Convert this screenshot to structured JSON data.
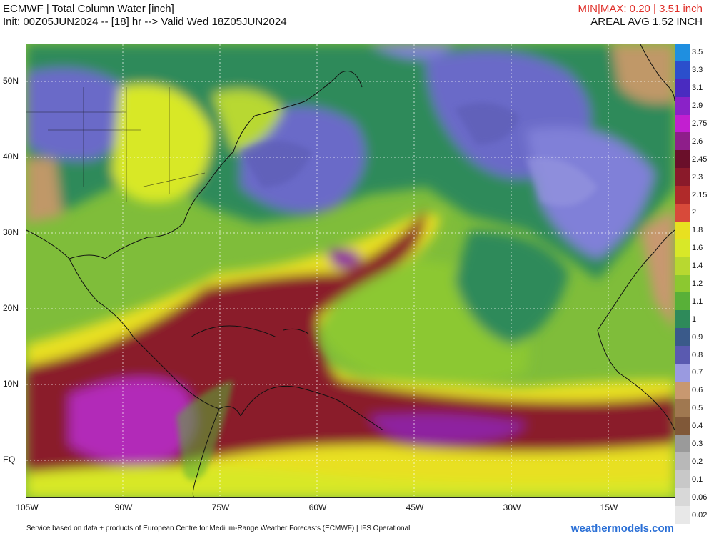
{
  "header": {
    "title": "ECMWF | Total Column Water [inch]",
    "init": "Init: 00Z05JUN2024 -- [18] hr --> Valid Wed 18Z05JUN2024",
    "minmax": "MIN|MAX: 0.20 | 3.51 inch",
    "areal_avg": "AREAL AVG 1.52 INCH"
  },
  "lat_labels": [
    "50N",
    "40N",
    "30N",
    "20N",
    "10N",
    "EQ"
  ],
  "lon_labels": [
    "105W",
    "90W",
    "75W",
    "60W",
    "45W",
    "30W",
    "15W"
  ],
  "colorbar": {
    "labels": [
      "3.5",
      "3.3",
      "3.1",
      "2.9",
      "2.75",
      "2.6",
      "2.45",
      "2.3",
      "2.15",
      "2",
      "1.8",
      "1.6",
      "1.4",
      "1.2",
      "1.1",
      "1",
      "0.9",
      "0.8",
      "0.7",
      "0.6",
      "0.5",
      "0.4",
      "0.3",
      "0.2",
      "0.1",
      "0.06",
      "0.02"
    ],
    "colors": [
      "#1f8fe0",
      "#2b4fcc",
      "#4a2bc0",
      "#8a22c8",
      "#c21fd0",
      "#8e1e8a",
      "#6a0f2a",
      "#8a1a2a",
      "#b02a2a",
      "#d84a3a",
      "#e8e020",
      "#d8e828",
      "#b8d830",
      "#8cc830",
      "#58b038",
      "#2e8a5a",
      "#3a5a8a",
      "#5a5ab0",
      "#9a9ae0",
      "#c89870",
      "#a07850",
      "#805838",
      "#9a9a9a",
      "#b8b8b8",
      "#c8c8c8",
      "#d8d8d8",
      "#e8e8e8"
    ]
  },
  "footer": "Service based on data + products of European Centre for Medium-Range Weather Forecasts (ECMWF) | IFS Operational",
  "brand": "weathermodels.com"
}
